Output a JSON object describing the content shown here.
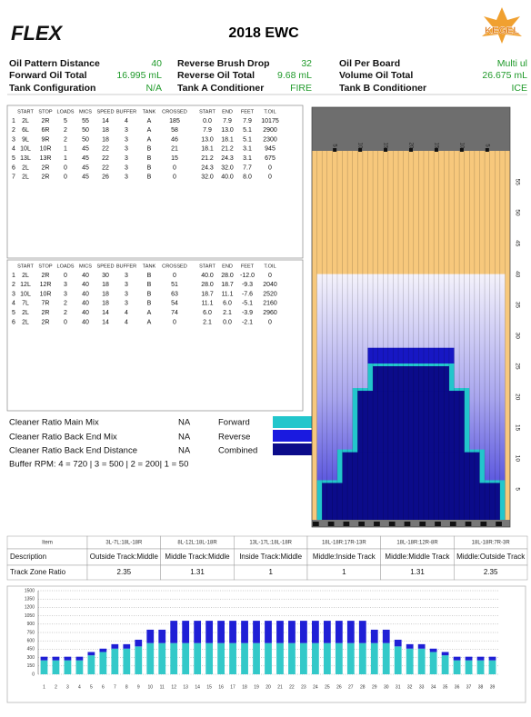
{
  "header": {
    "logo": "FLEX",
    "title": "2018 EWC",
    "brand": "KEGEL"
  },
  "info": [
    {
      "label": "Oil Pattern Distance",
      "value": "40"
    },
    {
      "label": "Reverse Brush Drop",
      "value": "32"
    },
    {
      "label": "Oil Per Board",
      "value": "Multi ul"
    },
    {
      "label": "Forward Oil Total",
      "value": "16.995 mL"
    },
    {
      "label": "Reverse Oil Total",
      "value": "9.68 mL"
    },
    {
      "label": "Volume Oil Total",
      "value": "26.675 mL"
    },
    {
      "label": "Tank Configuration",
      "value": "N/A"
    },
    {
      "label": "Tank A Conditioner",
      "value": "FIRE"
    },
    {
      "label": "Tank B Conditioner",
      "value": "ICE"
    }
  ],
  "forward_table": {
    "headers": [
      "START",
      "STOP",
      "LOADS",
      "MICS",
      "SPEED",
      "BUFFER",
      "TANK",
      "CROSSED",
      "START",
      "END",
      "FEET",
      "T.OIL"
    ],
    "rows": [
      [
        "1",
        "2L",
        "2R",
        "5",
        "55",
        "14",
        "4",
        "A",
        "185",
        "0.0",
        "7.9",
        "7.9",
        "10175"
      ],
      [
        "2",
        "6L",
        "6R",
        "2",
        "50",
        "18",
        "3",
        "A",
        "58",
        "7.9",
        "13.0",
        "5.1",
        "2900"
      ],
      [
        "3",
        "9L",
        "9R",
        "2",
        "50",
        "18",
        "3",
        "A",
        "46",
        "13.0",
        "18.1",
        "5.1",
        "2300"
      ],
      [
        "4",
        "10L",
        "10R",
        "1",
        "45",
        "22",
        "3",
        "B",
        "21",
        "18.1",
        "21.2",
        "3.1",
        "945"
      ],
      [
        "5",
        "13L",
        "13R",
        "1",
        "45",
        "22",
        "3",
        "B",
        "15",
        "21.2",
        "24.3",
        "3.1",
        "675"
      ],
      [
        "6",
        "2L",
        "2R",
        "0",
        "45",
        "22",
        "3",
        "B",
        "0",
        "24.3",
        "32.0",
        "7.7",
        "0"
      ],
      [
        "7",
        "2L",
        "2R",
        "0",
        "45",
        "26",
        "3",
        "B",
        "0",
        "32.0",
        "40.0",
        "8.0",
        "0"
      ]
    ]
  },
  "reverse_table": {
    "headers": [
      "START",
      "STOP",
      "LOADS",
      "MICS",
      "SPEED",
      "BUFFER",
      "TANK",
      "CROSSED",
      "START",
      "END",
      "FEET",
      "T.OIL"
    ],
    "rows": [
      [
        "1",
        "2L",
        "2R",
        "0",
        "40",
        "30",
        "3",
        "B",
        "0",
        "40.0",
        "28.0",
        "-12.0",
        "0"
      ],
      [
        "2",
        "12L",
        "12R",
        "3",
        "40",
        "18",
        "3",
        "B",
        "51",
        "28.0",
        "18.7",
        "-9.3",
        "2040"
      ],
      [
        "3",
        "10L",
        "10R",
        "3",
        "40",
        "18",
        "3",
        "B",
        "63",
        "18.7",
        "11.1",
        "-7.6",
        "2520"
      ],
      [
        "4",
        "7L",
        "7R",
        "2",
        "40",
        "18",
        "3",
        "B",
        "54",
        "11.1",
        "6.0",
        "-5.1",
        "2160"
      ],
      [
        "5",
        "2L",
        "2R",
        "2",
        "40",
        "14",
        "4",
        "A",
        "74",
        "6.0",
        "2.1",
        "-3.9",
        "2960"
      ],
      [
        "6",
        "2L",
        "2R",
        "0",
        "40",
        "14",
        "4",
        "A",
        "0",
        "2.1",
        "0.0",
        "-2.1",
        "0"
      ]
    ]
  },
  "cleaner": [
    {
      "label": "Cleaner Ratio Main Mix",
      "value": "NA"
    },
    {
      "label": "Cleaner Ratio Back End Mix",
      "value": "NA"
    },
    {
      "label": "Cleaner Ratio Back End Distance",
      "value": "NA"
    }
  ],
  "legend": [
    {
      "name": "Forward",
      "color": "#22c6cc"
    },
    {
      "name": "Reverse",
      "color": "#1a1ae0"
    },
    {
      "name": "Combined",
      "color": "#0b0b8a"
    }
  ],
  "buffer_rpm": "Buffer RPM: 4 = 720 | 3 = 500 | 2 = 200| 1 = 50",
  "lane_graphic": {
    "board_labels": [
      "5",
      "10",
      "15",
      "20",
      "15",
      "10",
      "5"
    ],
    "distance_labels": [
      "55",
      "50",
      "45",
      "40",
      "35",
      "30",
      "25",
      "20",
      "15",
      "10",
      "5"
    ]
  },
  "track_zones": {
    "header": "Item",
    "columns": [
      "3L-7L:18L-18R",
      "8L-12L:18L-18R",
      "13L-17L:18L-18R",
      "18L-18R:17R-13R",
      "18L-18R:12R-8R",
      "18L-18R:7R-3R"
    ],
    "rows": [
      {
        "label": "Description",
        "cells": [
          "Outside Track:Middle",
          "Middle Track:Middle",
          "Inside Track:Middle",
          "Middle:Inside Track",
          "Middle:Middle Track",
          "Middle:Outside Track"
        ]
      },
      {
        "label": "Track Zone Ratio",
        "cells": [
          "2.35",
          "1.31",
          "1",
          "1",
          "1.31",
          "2.35"
        ]
      }
    ]
  },
  "chart_data": {
    "type": "bar",
    "stacked": true,
    "categories": [
      "1",
      "2",
      "3",
      "4",
      "5",
      "6",
      "7",
      "8",
      "9",
      "10",
      "11",
      "12",
      "13",
      "14",
      "15",
      "16",
      "17",
      "18",
      "19",
      "20",
      "21",
      "22",
      "23",
      "24",
      "25",
      "26",
      "27",
      "28",
      "29",
      "30",
      "31",
      "32",
      "33",
      "34",
      "35",
      "36",
      "37",
      "38",
      "39"
    ],
    "series": [
      {
        "color": "#33c9c9",
        "values": [
          250,
          250,
          250,
          250,
          340,
          400,
          460,
          460,
          500,
          560,
          560,
          560,
          560,
          560,
          560,
          560,
          560,
          560,
          560,
          560,
          560,
          560,
          560,
          560,
          560,
          560,
          560,
          560,
          560,
          560,
          500,
          460,
          460,
          400,
          340,
          250,
          250,
          250,
          250
        ]
      },
      {
        "color": "#1f1fd6",
        "values": [
          65,
          65,
          65,
          65,
          60,
          60,
          80,
          80,
          120,
          240,
          240,
          400,
          400,
          400,
          400,
          400,
          400,
          400,
          400,
          400,
          400,
          400,
          400,
          400,
          400,
          400,
          400,
          400,
          240,
          240,
          120,
          80,
          80,
          60,
          60,
          65,
          65,
          65,
          65
        ]
      }
    ],
    "ylim": [
      0,
      1500
    ],
    "yticks": [
      0,
      150,
      300,
      450,
      600,
      750,
      900,
      1050,
      1200,
      1350,
      1500
    ],
    "grid": true
  }
}
